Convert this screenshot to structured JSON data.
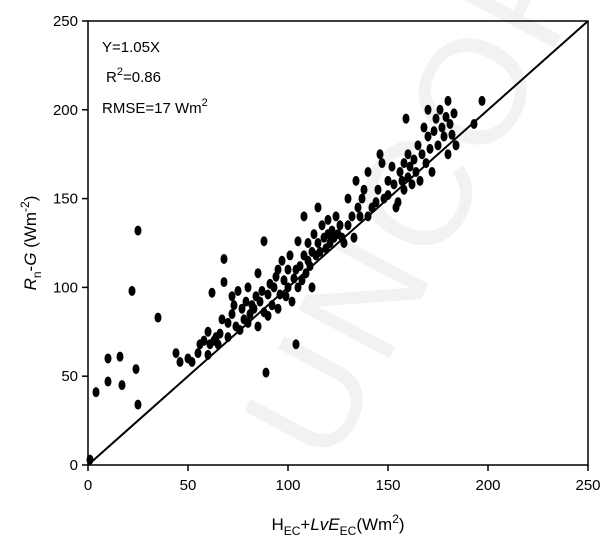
{
  "chart_data": {
    "type": "scatter",
    "title": "",
    "xlim": [
      0,
      250
    ],
    "ylim": [
      0,
      250
    ],
    "xticks": [
      "0",
      "50",
      "100",
      "150",
      "200",
      "250"
    ],
    "yticks": [
      "0",
      "50",
      "100",
      "150",
      "200",
      "250"
    ],
    "xlabel": {
      "main": "H",
      "sub1": "EC",
      "plus": "+",
      "lve": "LvE",
      "sub2": "EC",
      "unit": "(Wm",
      "sup": "2",
      "close": ")"
    },
    "ylabel": {
      "r": "R",
      "rsub": "n",
      "mid": "-",
      "g": "G",
      "unit": " (Wm",
      "sup": "-2",
      "close": ")"
    },
    "annotations": {
      "equation": "Y=1.05X",
      "r2_prefix": "R",
      "r2_sup": "2",
      "r2_value": "=0.86",
      "rmse_text": "RMSE=17 Wm",
      "rmse_sup": "2"
    },
    "watermark": "UNCORR",
    "grid": false,
    "line": {
      "x": [
        0,
        250
      ],
      "y": [
        0,
        250
      ]
    },
    "points": [
      [
        1,
        3
      ],
      [
        4,
        41
      ],
      [
        10,
        47
      ],
      [
        10,
        60
      ],
      [
        16,
        61
      ],
      [
        17,
        45
      ],
      [
        22,
        98
      ],
      [
        24,
        54
      ],
      [
        25,
        34
      ],
      [
        25,
        132
      ],
      [
        35,
        83
      ],
      [
        44,
        63
      ],
      [
        46,
        58
      ],
      [
        50,
        60
      ],
      [
        52,
        58
      ],
      [
        55,
        63
      ],
      [
        56,
        68
      ],
      [
        58,
        70
      ],
      [
        60,
        62
      ],
      [
        60,
        75
      ],
      [
        61,
        68
      ],
      [
        62,
        97
      ],
      [
        63,
        70
      ],
      [
        64,
        72
      ],
      [
        65,
        68
      ],
      [
        66,
        74
      ],
      [
        67,
        82
      ],
      [
        68,
        116
      ],
      [
        68,
        103
      ],
      [
        70,
        72
      ],
      [
        70,
        80
      ],
      [
        72,
        85
      ],
      [
        72,
        95
      ],
      [
        73,
        90
      ],
      [
        74,
        78
      ],
      [
        75,
        98
      ],
      [
        76,
        76
      ],
      [
        77,
        88
      ],
      [
        78,
        82
      ],
      [
        79,
        92
      ],
      [
        80,
        80
      ],
      [
        80,
        100
      ],
      [
        81,
        85
      ],
      [
        82,
        90
      ],
      [
        83,
        88
      ],
      [
        84,
        95
      ],
      [
        85,
        78
      ],
      [
        85,
        108
      ],
      [
        86,
        92
      ],
      [
        87,
        98
      ],
      [
        88,
        86
      ],
      [
        88,
        126
      ],
      [
        89,
        52
      ],
      [
        90,
        84
      ],
      [
        90,
        96
      ],
      [
        91,
        102
      ],
      [
        92,
        90
      ],
      [
        93,
        100
      ],
      [
        94,
        106
      ],
      [
        95,
        88
      ],
      [
        95,
        110
      ],
      [
        96,
        96
      ],
      [
        97,
        115
      ],
      [
        98,
        104
      ],
      [
        99,
        95
      ],
      [
        100,
        110
      ],
      [
        100,
        100
      ],
      [
        101,
        118
      ],
      [
        102,
        92
      ],
      [
        103,
        105
      ],
      [
        104,
        110
      ],
      [
        104,
        68
      ],
      [
        105,
        100
      ],
      [
        105,
        126
      ],
      [
        106,
        112
      ],
      [
        107,
        104
      ],
      [
        108,
        118
      ],
      [
        108,
        140
      ],
      [
        109,
        108
      ],
      [
        110,
        115
      ],
      [
        110,
        125
      ],
      [
        111,
        112
      ],
      [
        112,
        120
      ],
      [
        112,
        100
      ],
      [
        113,
        130
      ],
      [
        114,
        118
      ],
      [
        115,
        125
      ],
      [
        115,
        145
      ],
      [
        116,
        120
      ],
      [
        117,
        135
      ],
      [
        118,
        128
      ],
      [
        119,
        122
      ],
      [
        120,
        130
      ],
      [
        120,
        138
      ],
      [
        121,
        125
      ],
      [
        122,
        132
      ],
      [
        123,
        128
      ],
      [
        124,
        140
      ],
      [
        125,
        130
      ],
      [
        126,
        135
      ],
      [
        127,
        128
      ],
      [
        128,
        125
      ],
      [
        130,
        135
      ],
      [
        130,
        150
      ],
      [
        132,
        140
      ],
      [
        133,
        128
      ],
      [
        134,
        160
      ],
      [
        135,
        145
      ],
      [
        136,
        140
      ],
      [
        137,
        150
      ],
      [
        138,
        155
      ],
      [
        140,
        140
      ],
      [
        140,
        165
      ],
      [
        142,
        145
      ],
      [
        144,
        148
      ],
      [
        145,
        155
      ],
      [
        146,
        175
      ],
      [
        147,
        170
      ],
      [
        148,
        150
      ],
      [
        150,
        152
      ],
      [
        150,
        160
      ],
      [
        152,
        168
      ],
      [
        153,
        158
      ],
      [
        154,
        145
      ],
      [
        155,
        148
      ],
      [
        156,
        165
      ],
      [
        157,
        160
      ],
      [
        158,
        155
      ],
      [
        158,
        170
      ],
      [
        159,
        195
      ],
      [
        160,
        162
      ],
      [
        160,
        175
      ],
      [
        161,
        168
      ],
      [
        162,
        158
      ],
      [
        163,
        172
      ],
      [
        164,
        165
      ],
      [
        165,
        180
      ],
      [
        166,
        160
      ],
      [
        167,
        175
      ],
      [
        168,
        190
      ],
      [
        169,
        170
      ],
      [
        170,
        185
      ],
      [
        170,
        200
      ],
      [
        171,
        178
      ],
      [
        172,
        165
      ],
      [
        173,
        188
      ],
      [
        174,
        195
      ],
      [
        175,
        180
      ],
      [
        176,
        200
      ],
      [
        177,
        190
      ],
      [
        178,
        185
      ],
      [
        179,
        196
      ],
      [
        180,
        205
      ],
      [
        180,
        175
      ],
      [
        181,
        192
      ],
      [
        182,
        186
      ],
      [
        183,
        198
      ],
      [
        184,
        180
      ],
      [
        193,
        192
      ],
      [
        197,
        205
      ]
    ]
  }
}
